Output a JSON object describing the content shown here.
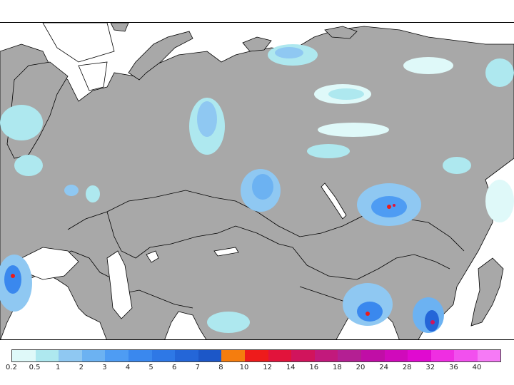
{
  "map": {
    "land_color": "#a8a8a8",
    "water_color": "#ffffff",
    "border_color": "#000000"
  },
  "legend": {
    "colors": [
      "#dff9f9",
      "#aee8ef",
      "#8fc8f2",
      "#6cb2f2",
      "#4e9cf3",
      "#3a88ee",
      "#2e78e6",
      "#2466d8",
      "#1c57c8",
      "#f57d0e",
      "#ee1b1b",
      "#e2133b",
      "#d1145c",
      "#c2197c",
      "#b41f93",
      "#c00ea6",
      "#d00abb",
      "#e00ad0",
      "#ef2ee2",
      "#f250ee",
      "#f67af6"
    ],
    "labels": [
      "0.2",
      "0.5",
      "1",
      "2",
      "3",
      "4",
      "5",
      "6",
      "7",
      "8",
      "10",
      "12",
      "14",
      "16",
      "18",
      "20",
      "24",
      "28",
      "32",
      "36",
      "40"
    ]
  }
}
